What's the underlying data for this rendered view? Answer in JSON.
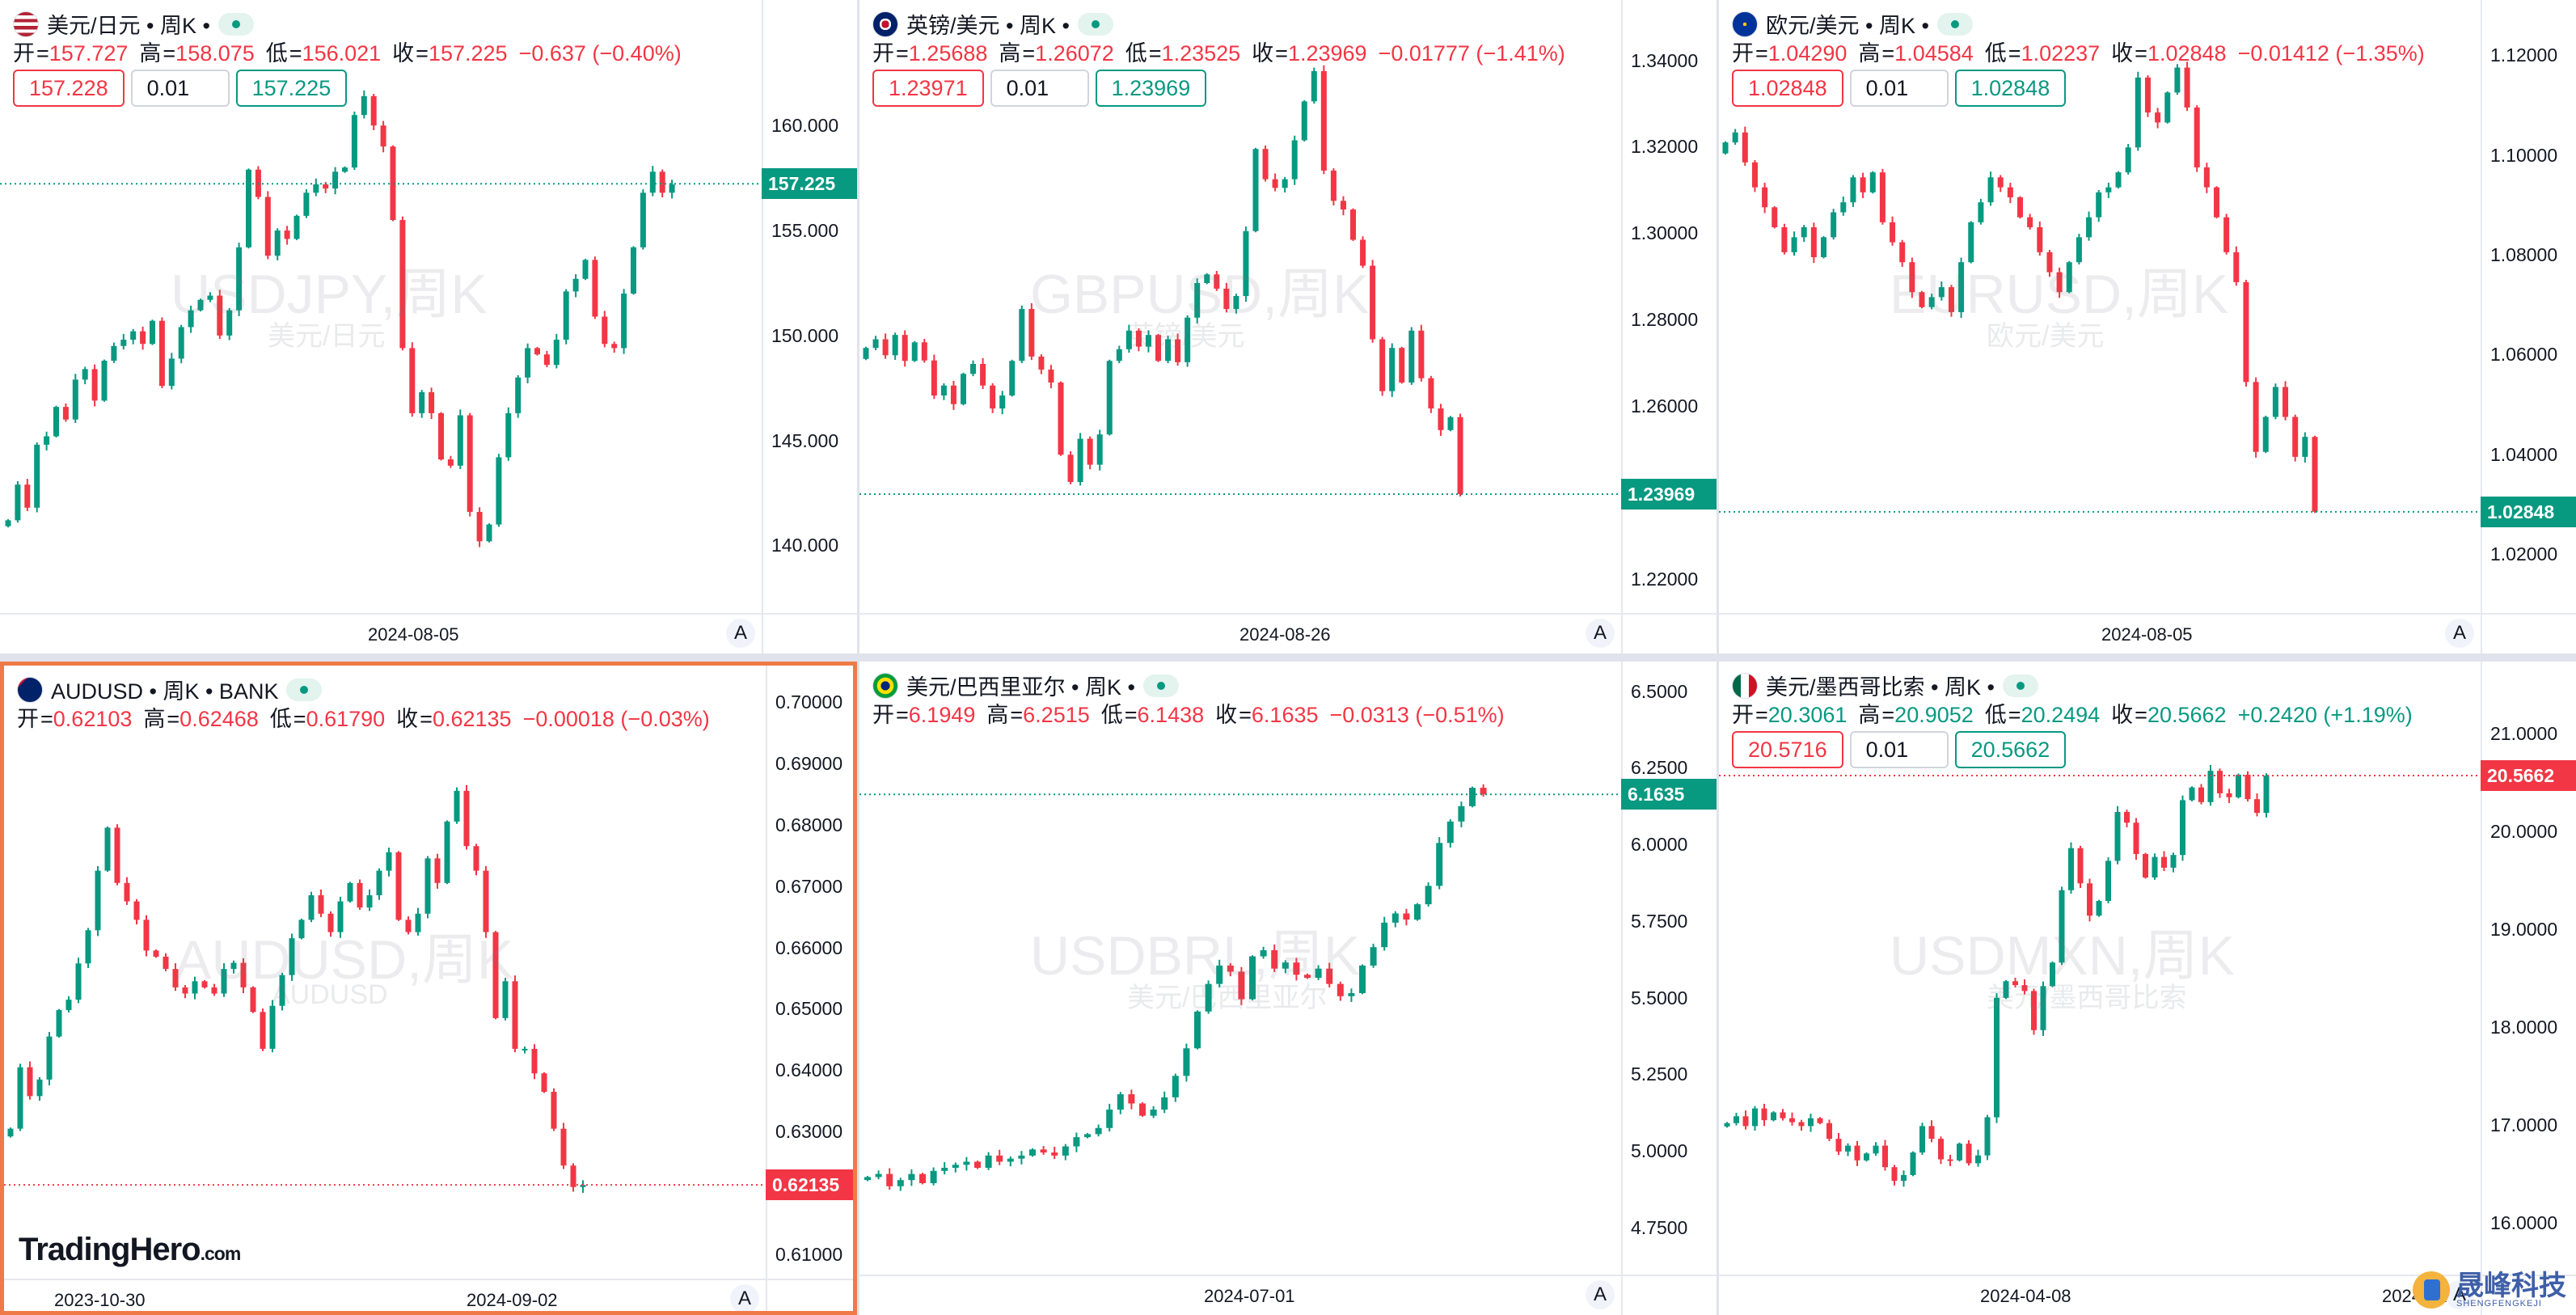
{
  "colors": {
    "up": "#089981",
    "down": "#f23645",
    "active_border": "#f07a47",
    "grid_bg": "#e0e3eb"
  },
  "panels": [
    {
      "id": "usdjpy",
      "flag": "us-flag",
      "title": "美元/日元 • 周K •",
      "ohlc": {
        "o_label": "开",
        "o": "157.727",
        "h_label": "高",
        "h": "158.075",
        "l_label": "低",
        "l": "156.021",
        "c_label": "收",
        "c": "157.225",
        "chg": "−0.637 (−0.40%)",
        "dir": "dn"
      },
      "trade": {
        "sell": "157.228",
        "qty": "0.01",
        "buy": "157.225"
      },
      "watermark": {
        "symbol": "USDJPY,周K",
        "desc": "美元/日元"
      },
      "y_ticks": [
        "160.000",
        "155.000",
        "150.000",
        "145.000",
        "140.000"
      ],
      "price_label": {
        "value": "157.225",
        "dir": "up"
      },
      "x_labels": [
        "2024-08-05"
      ],
      "auto_button": "A",
      "chart_data": {
        "type": "candlestick",
        "ylim": [
          137.4,
          164.9
        ],
        "last": 157.225,
        "closes": [
          141.2,
          142.9,
          141.8,
          144.8,
          145.2,
          146.6,
          146.0,
          147.9,
          148.4,
          146.9,
          148.8,
          149.5,
          149.8,
          150.2,
          149.6,
          150.7,
          147.6,
          148.9,
          150.4,
          151.2,
          151.7,
          151.9,
          150.0,
          151.2,
          154.2,
          157.9,
          156.6,
          153.8,
          155.0,
          154.6,
          155.7,
          156.8,
          157.2,
          157.0,
          157.8,
          158.0,
          160.5,
          161.4,
          160.0,
          159.0,
          155.5,
          149.4,
          146.3,
          147.3,
          146.3,
          144.1,
          143.8,
          146.2,
          141.6,
          140.2,
          141.0,
          144.2,
          146.3,
          148.0,
          149.4,
          149.1,
          148.6,
          149.8,
          152.1,
          152.7,
          153.6,
          150.9,
          149.6,
          149.4,
          152.0,
          154.2,
          156.8,
          157.8,
          156.8,
          157.2
        ]
      }
    },
    {
      "id": "gbpusd",
      "flag": "uk-flag",
      "title": "英镑/美元 • 周K •",
      "ohlc": {
        "o_label": "开",
        "o": "1.25688",
        "h_label": "高",
        "h": "1.26072",
        "l_label": "低",
        "l": "1.23525",
        "c_label": "收",
        "c": "1.23969",
        "chg": "−0.01777 (−1.41%)",
        "dir": "dn"
      },
      "trade": {
        "sell": "1.23971",
        "qty": "0.01",
        "buy": "1.23969"
      },
      "watermark": {
        "symbol": "GBPUSD,周K",
        "desc": "英镑/美元"
      },
      "y_ticks": [
        "1.34000",
        "1.32000",
        "1.30000",
        "1.28000",
        "1.26000",
        "1.24000",
        "1.22000"
      ],
      "price_label": {
        "value": "1.23969",
        "dir": "up"
      },
      "x_labels": [
        "2024-08-26"
      ],
      "auto_button": "A",
      "chart_data": {
        "type": "candlestick",
        "ylim": [
          1.2152,
          1.3487
        ],
        "last": 1.23969,
        "closes": [
          1.2735,
          1.2755,
          1.2718,
          1.2765,
          1.2705,
          1.2748,
          1.2706,
          1.2625,
          1.2648,
          1.2605,
          1.2675,
          1.2698,
          1.2648,
          1.2595,
          1.2625,
          1.2705,
          1.2825,
          1.2715,
          1.2685,
          1.2655,
          1.2488,
          1.2425,
          1.2525,
          1.2465,
          1.2535,
          1.2705,
          1.2732,
          1.2775,
          1.2738,
          1.2765,
          1.2705,
          1.2755,
          1.2702,
          1.2805,
          1.2885,
          1.2905,
          1.2872,
          1.2825,
          1.2855,
          1.3005,
          1.3195,
          1.3125,
          1.3105,
          1.3125,
          1.3215,
          1.3305,
          1.3375,
          1.3145,
          1.3075,
          1.3055,
          1.2985,
          1.2925,
          1.2755,
          1.2635,
          1.2735,
          1.2655,
          1.2775,
          1.2665,
          1.2595,
          1.2545,
          1.2575,
          1.2397
        ]
      }
    },
    {
      "id": "eurusd",
      "flag": "eu-flag",
      "title": "欧元/美元 • 周K •",
      "ohlc": {
        "o_label": "开",
        "o": "1.04290",
        "h_label": "高",
        "h": "1.04584",
        "l_label": "低",
        "l": "1.02237",
        "c_label": "收",
        "c": "1.02848",
        "chg": "−0.01412 (−1.35%)",
        "dir": "dn"
      },
      "trade": {
        "sell": "1.02848",
        "qty": "0.01",
        "buy": "1.02848"
      },
      "watermark": {
        "symbol": "EURUSD,周K",
        "desc": "欧元/美元"
      },
      "y_ticks": [
        "1.12000",
        "1.10000",
        "1.08000",
        "1.06000",
        "1.04000",
        "1.02000"
      ],
      "price_label": {
        "value": "1.02848",
        "dir": "up"
      },
      "x_labels": [
        "2024-08-05"
      ],
      "auto_button": "A",
      "chart_data": {
        "type": "candlestick",
        "ylim": [
          1.0108,
          1.1265
        ],
        "last": 1.02848,
        "closes": [
          1.1025,
          1.1045,
          1.0985,
          1.0935,
          1.0895,
          1.0855,
          1.0805,
          1.0835,
          1.0855,
          1.0795,
          1.0835,
          1.0885,
          1.0905,
          1.0955,
          1.0925,
          1.0965,
          1.0865,
          1.0825,
          1.0785,
          1.0725,
          1.0695,
          1.0715,
          1.0735,
          1.0685,
          1.0785,
          1.0865,
          1.0905,
          1.0955,
          1.0935,
          1.0915,
          1.0875,
          1.0855,
          1.0805,
          1.0765,
          1.0725,
          1.0785,
          1.0835,
          1.0875,
          1.0925,
          1.0935,
          1.0965,
          1.1015,
          1.1155,
          1.1085,
          1.1065,
          1.1125,
          1.1175,
          1.1095,
          1.0975,
          1.0935,
          1.0875,
          1.0805,
          1.0745,
          1.0545,
          1.0405,
          1.0475,
          1.0535,
          1.0475,
          1.0395,
          1.0435,
          1.0285
        ]
      }
    },
    {
      "id": "audusd",
      "flag": "au-flag",
      "title": "AUDUSD • 周K • BANK",
      "ohlc": {
        "o_label": "开",
        "o": "0.62103",
        "h_label": "高",
        "h": "0.62468",
        "l_label": "低",
        "l": "0.61790",
        "c_label": "收",
        "c": "0.62135",
        "chg": "−0.00018 (−0.03%)",
        "dir": "dn"
      },
      "watermark": {
        "symbol": "AUDUSD,周K",
        "desc": "AUDUSD"
      },
      "y_ticks": [
        "0.70000",
        "0.69000",
        "0.68000",
        "0.67000",
        "0.66000",
        "0.65000",
        "0.64000",
        "0.63000",
        "0.62000",
        "0.61000"
      ],
      "price_label": {
        "value": "0.62135",
        "dir": "dn"
      },
      "x_labels": [
        "2023-10-30",
        "2024-09-02"
      ],
      "auto_button": "A",
      "brand": {
        "name": "TradingHero",
        "suffix": ".com"
      },
      "chart_data": {
        "type": "candlestick",
        "ylim": [
          0.6082,
          0.7022
        ],
        "last": 0.62135,
        "closes": [
          0.6305,
          0.6405,
          0.6358,
          0.6385,
          0.6455,
          0.6498,
          0.6515,
          0.6574,
          0.6628,
          0.6725,
          0.6795,
          0.6705,
          0.6675,
          0.6645,
          0.6595,
          0.6585,
          0.6565,
          0.6535,
          0.6525,
          0.6545,
          0.6535,
          0.6525,
          0.6565,
          0.6575,
          0.6535,
          0.6495,
          0.6435,
          0.6505,
          0.6555,
          0.6615,
          0.6645,
          0.6685,
          0.6655,
          0.6625,
          0.6675,
          0.6705,
          0.6665,
          0.6685,
          0.6725,
          0.6755,
          0.6645,
          0.6625,
          0.6655,
          0.6745,
          0.6705,
          0.6805,
          0.6855,
          0.6765,
          0.6725,
          0.6625,
          0.6485,
          0.6545,
          0.6435,
          0.6435,
          0.6395,
          0.6365,
          0.6305,
          0.6245,
          0.621,
          0.62135
        ]
      }
    },
    {
      "id": "usdbrl",
      "flag": "br-flag",
      "title": "美元/巴西里亚尔 • 周K •",
      "ohlc": {
        "o_label": "开",
        "o": "6.1949",
        "h_label": "高",
        "h": "6.2515",
        "l_label": "低",
        "l": "6.1438",
        "c_label": "收",
        "c": "6.1635",
        "chg": "−0.0313 (−0.51%)",
        "dir": "dn"
      },
      "watermark": {
        "symbol": "USDBRL,周K",
        "desc": "美元/巴西里亚尔"
      },
      "y_ticks": [
        "6.5000",
        "6.2500",
        "6.0000",
        "5.7500",
        "5.5000",
        "5.2500",
        "5.0000",
        "4.7500"
      ],
      "price_label": {
        "value": "6.1635",
        "dir": "up"
      },
      "x_labels": [
        "2024-07-01"
      ],
      "auto_button": "A",
      "chart_data": {
        "type": "candlestick",
        "ylim": [
          4.639,
          6.523
        ],
        "last": 6.1635,
        "closes": [
          4.915,
          4.925,
          4.885,
          4.905,
          4.925,
          4.895,
          4.935,
          4.945,
          4.955,
          4.965,
          4.945,
          4.985,
          4.965,
          4.975,
          4.985,
          5.005,
          4.995,
          4.985,
          5.015,
          5.045,
          5.055,
          5.075,
          5.135,
          5.185,
          5.155,
          5.115,
          5.135,
          5.175,
          5.245,
          5.335,
          5.455,
          5.545,
          5.605,
          5.585,
          5.495,
          5.635,
          5.655,
          5.595,
          5.615,
          5.575,
          5.565,
          5.595,
          5.545,
          5.505,
          5.515,
          5.605,
          5.665,
          5.745,
          5.775,
          5.755,
          5.805,
          5.865,
          6.005,
          6.075,
          6.125,
          6.185,
          6.1635
        ]
      }
    },
    {
      "id": "usdmxn",
      "flag": "mx-flag",
      "title": "美元/墨西哥比索 • 周K •",
      "ohlc": {
        "o_label": "开",
        "o": "20.3061",
        "h_label": "高",
        "h": "20.9052",
        "l_label": "低",
        "l": "20.2494",
        "c_label": "收",
        "c": "20.5662",
        "chg": "+0.2420 (+1.19%)",
        "dir": "up"
      },
      "trade": {
        "sell": "20.5716",
        "qty": "0.01",
        "buy": "20.5662"
      },
      "watermark": {
        "symbol": "USDMXN,周K",
        "desc": "美元/墨西哥比索"
      },
      "y_ticks": [
        "21.0000",
        "20.0000",
        "19.0000",
        "18.0000",
        "17.0000",
        "16.0000"
      ],
      "price_label": {
        "value": "20.5662",
        "dir": "dn"
      },
      "x_labels": [
        "2024-04-08",
        "2024-12-23"
      ],
      "auto_button": "A",
      "logo": {
        "title": "晟峰科技",
        "subtitle": "SHENGFENGKEJI"
      },
      "chart_data": {
        "type": "candlestick",
        "ylim": [
          15.6,
          21.5
        ],
        "last": 20.5662,
        "closes": [
          17.015,
          17.085,
          16.985,
          17.165,
          17.045,
          17.125,
          17.065,
          17.025,
          16.985,
          17.065,
          17.015,
          16.855,
          16.725,
          16.785,
          16.635,
          16.705,
          16.785,
          16.565,
          16.425,
          16.485,
          16.715,
          16.985,
          16.855,
          16.645,
          16.635,
          16.805,
          16.605,
          16.685,
          17.075,
          18.295,
          18.465,
          18.425,
          18.365,
          17.965,
          18.415,
          18.655,
          19.395,
          19.825,
          19.465,
          19.135,
          19.285,
          19.695,
          20.195,
          20.085,
          19.765,
          19.525,
          19.735,
          19.625,
          19.755,
          20.315,
          20.445,
          20.295,
          20.615,
          20.385,
          20.345,
          20.575,
          20.325,
          20.185,
          20.5662
        ]
      }
    }
  ]
}
